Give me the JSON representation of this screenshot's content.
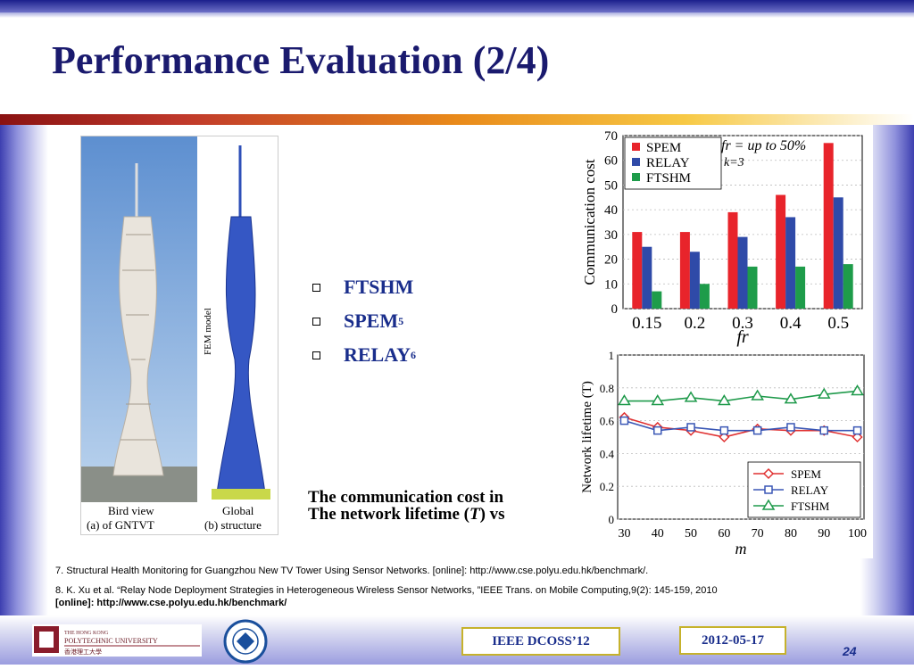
{
  "slide": {
    "title": "Performance Evaluation (2/4)",
    "bullets": [
      "FTSHM",
      "SPEM",
      "RELAY"
    ],
    "bullet_refs": [
      "",
      "5",
      "6"
    ],
    "caption_line1": "The communication cost in",
    "caption_line2_pre": "The network lifetime (",
    "caption_line2_var": "T",
    "caption_line2_post": ") vs",
    "figure_labels": {
      "a1": "Bird view",
      "a2": "(a)   of GNTVT",
      "b1": "Global",
      "b2": "(b) structure",
      "model": "FEM model"
    },
    "footnote7": "7. Structural Health Monitoring for Guangzhou New TV Tower Using Sensor Networks. [online]: http://www.cse.polyu.edu.hk/benchmark/.",
    "footnote8_line1": "8. K. Xu et al. “Relay Node Deployment Strategies in Heterogeneous Wireless Sensor Networks, ”IEEE Trans. on Mobile Computing,9(2): 145-159, 2010",
    "footnote8_line2": "[online]: http://www.cse.polyu.edu.hk/benchmark/",
    "logo_text1": "THE HONG KONG",
    "logo_text2": "POLYTECHNIC UNIVERSITY",
    "logo_text3": "香港理工大學",
    "footer_conf": "IEEE DCOSS’12",
    "footer_date": "2012-05-17",
    "page_number": "24"
  },
  "colors": {
    "spem": "#e8242b",
    "relay": "#2f4aa8",
    "ftshm": "#1e9c4a",
    "spem_line": "#e03131",
    "relay_line": "#3a57b5",
    "ftshm_line": "#1f9a4b",
    "title": "#1a1a6e",
    "bullet": "#1a2e8c"
  },
  "chart_data": [
    {
      "type": "bar",
      "categories": [
        "0.15",
        "0.2",
        "0.3",
        "0.4",
        "0.5"
      ],
      "series": [
        {
          "name": "SPEM",
          "values": [
            31,
            31,
            39,
            46,
            67
          ]
        },
        {
          "name": "RELAY",
          "values": [
            25,
            23,
            29,
            37,
            45
          ]
        },
        {
          "name": "FTSHM",
          "values": [
            7,
            10,
            17,
            17,
            18
          ]
        }
      ],
      "ylabel": "Communication cost",
      "xlabel": "fr",
      "ylim": [
        0,
        70
      ],
      "yticks": [
        "0",
        "10",
        "20",
        "30",
        "40",
        "50",
        "60",
        "70"
      ],
      "annotation1": "fr = up to 50%",
      "annotation2": "k=3",
      "legend": "top-left"
    },
    {
      "type": "line",
      "x": [
        30,
        40,
        50,
        60,
        70,
        80,
        90,
        100
      ],
      "xticks": [
        "30",
        "40",
        "50",
        "60",
        "70",
        "80",
        "90",
        "100"
      ],
      "series": [
        {
          "name": "SPEM",
          "values": [
            0.62,
            0.56,
            0.54,
            0.5,
            0.55,
            0.54,
            0.54,
            0.5
          ]
        },
        {
          "name": "RELAY",
          "values": [
            0.6,
            0.54,
            0.56,
            0.54,
            0.54,
            0.56,
            0.54,
            0.54
          ]
        },
        {
          "name": "FTSHM",
          "values": [
            0.72,
            0.72,
            0.74,
            0.72,
            0.75,
            0.73,
            0.76,
            0.78
          ]
        }
      ],
      "ylabel": "Network lifetime (T)",
      "xlabel": "m",
      "ylim": [
        0,
        1
      ],
      "yticks": [
        "0",
        "0.2",
        "0.4",
        "0.6",
        "0.8",
        "1"
      ],
      "legend": "bottom-right"
    }
  ]
}
